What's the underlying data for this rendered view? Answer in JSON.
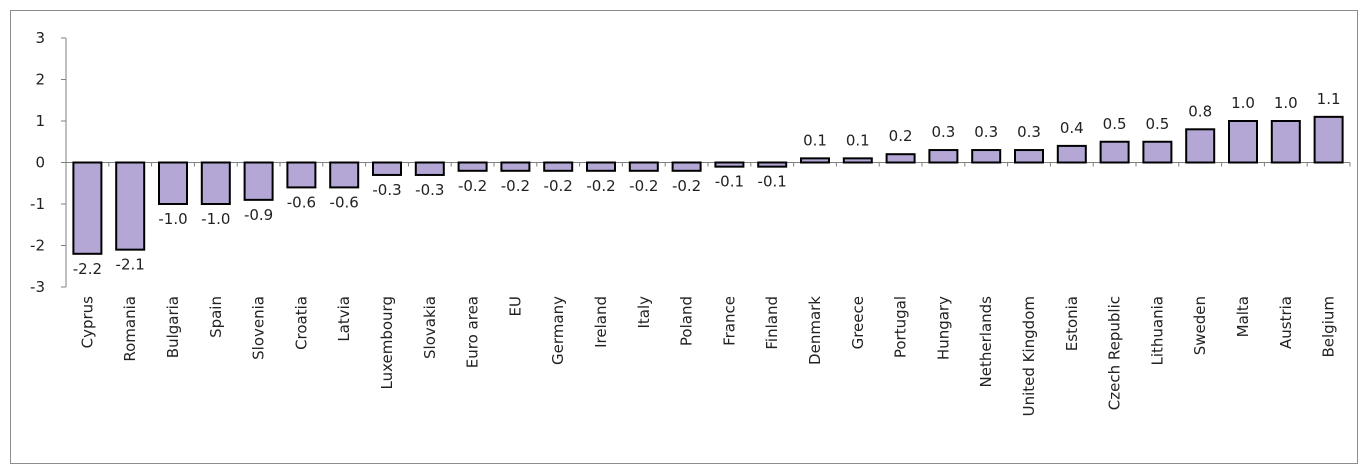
{
  "chart_data": {
    "type": "bar",
    "title": "",
    "xlabel": "",
    "ylabel": "",
    "ylim": [
      -3,
      3
    ],
    "yticks": [
      3,
      2,
      1,
      0,
      -1,
      -2,
      -3
    ],
    "grid": false,
    "legend": "none",
    "bar_color": "#b4a7d6",
    "bar_border_color": "#000000",
    "categories": [
      "Cyprus",
      "Romania",
      "Bulgaria",
      "Spain",
      "Slovenia",
      "Croatia",
      "Latvia",
      "Luxembourg",
      "Slovakia",
      "Euro area",
      "EU",
      "Germany",
      "Ireland",
      "Italy",
      "Poland",
      "France",
      "Finland",
      "Denmark",
      "Greece",
      "Portugal",
      "Hungary",
      "Netherlands",
      "United Kingdom",
      "Estonia",
      "Czech Republic",
      "Lithuania",
      "Sweden",
      "Malta",
      "Austria",
      "Belgium"
    ],
    "values": [
      -2.2,
      -2.1,
      -1.0,
      -1.0,
      -0.9,
      -0.6,
      -0.6,
      -0.3,
      -0.3,
      -0.2,
      -0.2,
      -0.2,
      -0.2,
      -0.2,
      -0.2,
      -0.1,
      -0.1,
      0.1,
      0.1,
      0.2,
      0.3,
      0.3,
      0.3,
      0.4,
      0.5,
      0.5,
      0.8,
      1.0,
      1.0,
      1.1
    ],
    "value_labels": [
      "-2.2",
      "-2.1",
      "-1.0",
      "-1.0",
      "-0.9",
      "-0.6",
      "-0.6",
      "-0.3",
      "-0.3",
      "-0.2",
      "-0.2",
      "-0.2",
      "-0.2",
      "-0.2",
      "-0.2",
      "-0.1",
      "-0.1",
      "0.1",
      "0.1",
      "0.2",
      "0.3",
      "0.3",
      "0.3",
      "0.4",
      "0.5",
      "0.5",
      "0.8",
      "1.0",
      "1.0",
      "1.1"
    ]
  }
}
